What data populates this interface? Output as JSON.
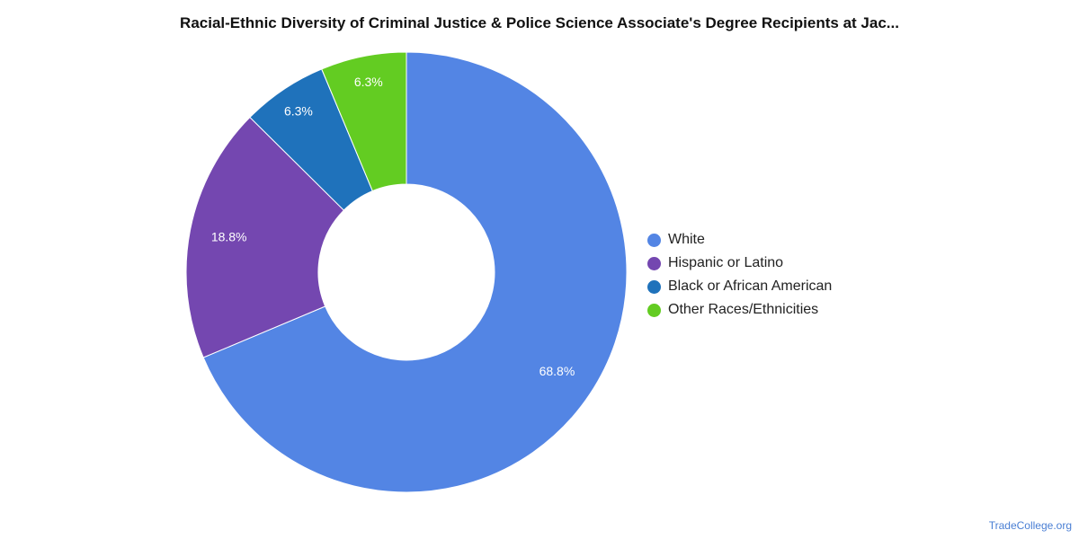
{
  "title": "Racial-Ethnic Diversity of Criminal Justice & Police Science Associate's Degree Recipients at Jac...",
  "chart_data": {
    "type": "pie",
    "style": "donut",
    "title": "Racial-Ethnic Diversity of Criminal Justice & Police Science Associate's Degree Recipients at Jac...",
    "categories": [
      "White",
      "Hispanic or Latino",
      "Black or African American",
      "Other Races/Ethnicities"
    ],
    "values": [
      68.8,
      18.8,
      6.3,
      6.3
    ],
    "value_labels": [
      "68.8%",
      "18.8%",
      "6.3%",
      "6.3%"
    ],
    "colors": [
      "#5385e4",
      "#7447b0",
      "#1f72bb",
      "#63cc22"
    ],
    "legend_position": "right"
  },
  "legend": {
    "items": [
      {
        "label": "White",
        "color": "#5385e4"
      },
      {
        "label": "Hispanic or Latino",
        "color": "#7447b0"
      },
      {
        "label": "Black or African American",
        "color": "#1f72bb"
      },
      {
        "label": "Other Races/Ethnicities",
        "color": "#63cc22"
      }
    ]
  },
  "credit": "TradeCollege.org"
}
